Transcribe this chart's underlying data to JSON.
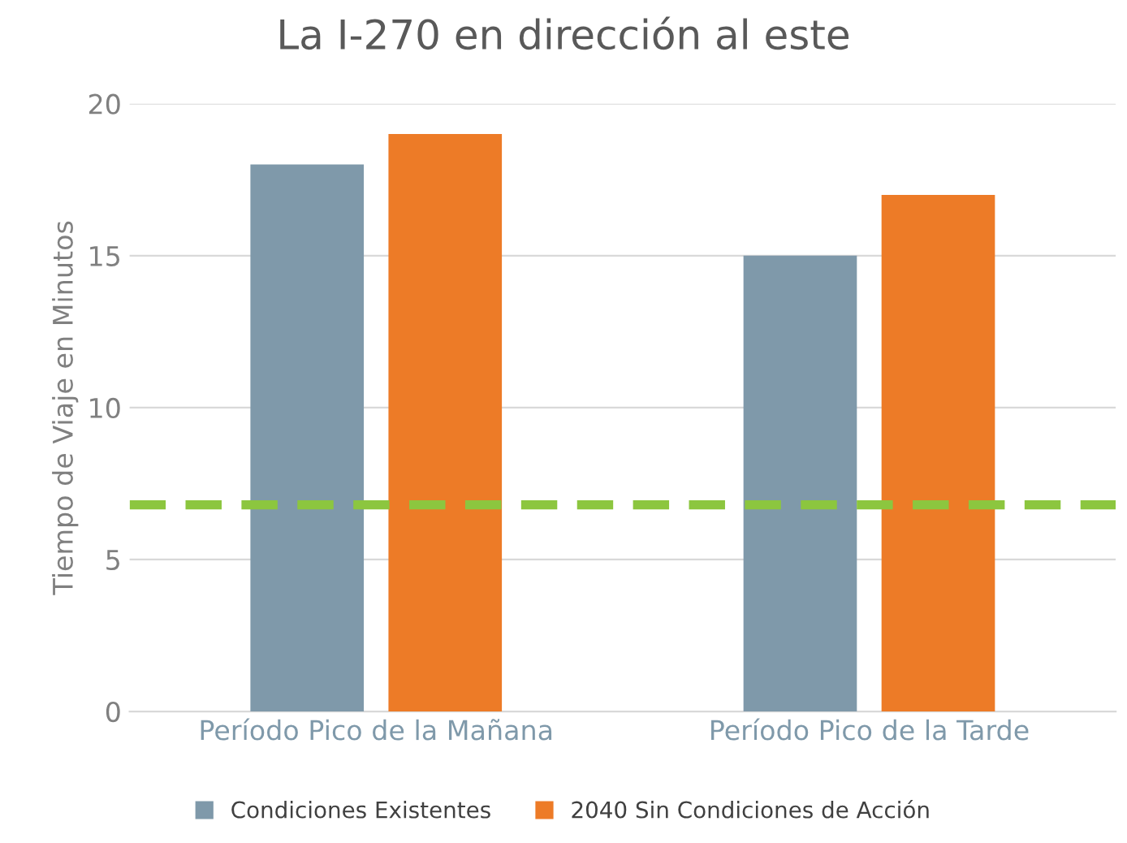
{
  "chart_data": {
    "type": "bar",
    "title": "La I-270 en dirección al este",
    "ylabel": "Tiempo de Viaje en Minutos",
    "categories": [
      "Período Pico de la Mañana",
      "Período Pico de la Tarde"
    ],
    "series": [
      {
        "name": "Condiciones Existentes",
        "color": "#7f99aa",
        "values": [
          18,
          15
        ]
      },
      {
        "name": "2040 Sin Condiciones de Acción",
        "color": "#ed7b27",
        "values": [
          19,
          17
        ]
      }
    ],
    "ylim": [
      0,
      20
    ],
    "yticks": [
      0,
      5,
      10,
      15,
      20
    ],
    "grid": "y",
    "legend": "bottom",
    "ref_lines": [
      {
        "axis": "y",
        "value": 6.8,
        "label": null,
        "color": "#8cc63f",
        "line_style": "dashed"
      }
    ]
  }
}
